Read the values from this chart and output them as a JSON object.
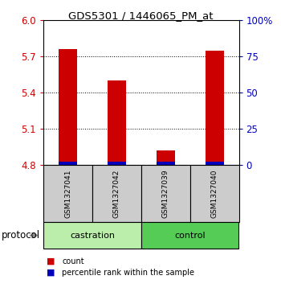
{
  "title": "GDS5301 / 1446065_PM_at",
  "samples": [
    "GSM1327041",
    "GSM1327042",
    "GSM1327039",
    "GSM1327040"
  ],
  "red_values": [
    5.76,
    5.5,
    4.92,
    5.75
  ],
  "blue_values": [
    0.03,
    0.03,
    0.03,
    0.03
  ],
  "ymin": 4.8,
  "ymax": 6.0,
  "yticks_left": [
    4.8,
    5.1,
    5.4,
    5.7,
    6.0
  ],
  "yticks_right": [
    0,
    25,
    50,
    75,
    100
  ],
  "yticks_right_labels": [
    "0",
    "25",
    "50",
    "75",
    "100%"
  ],
  "groups": [
    {
      "label": "castration",
      "indices": [
        0,
        1
      ]
    },
    {
      "label": "control",
      "indices": [
        2,
        3
      ]
    }
  ],
  "protocol_label": "protocol",
  "legend_red": "count",
  "legend_blue": "percentile rank within the sample",
  "bar_width": 0.38,
  "red_color": "#cc0000",
  "blue_color": "#0000bb",
  "left_axis_color": "#cc0000",
  "right_axis_color": "#0000bb",
  "background_color": "#ffffff",
  "sample_box_color": "#cccccc",
  "group_castration_color": "#bbeeaa",
  "group_control_color": "#55cc55",
  "grid_ticks": [
    5.1,
    5.4,
    5.7
  ]
}
